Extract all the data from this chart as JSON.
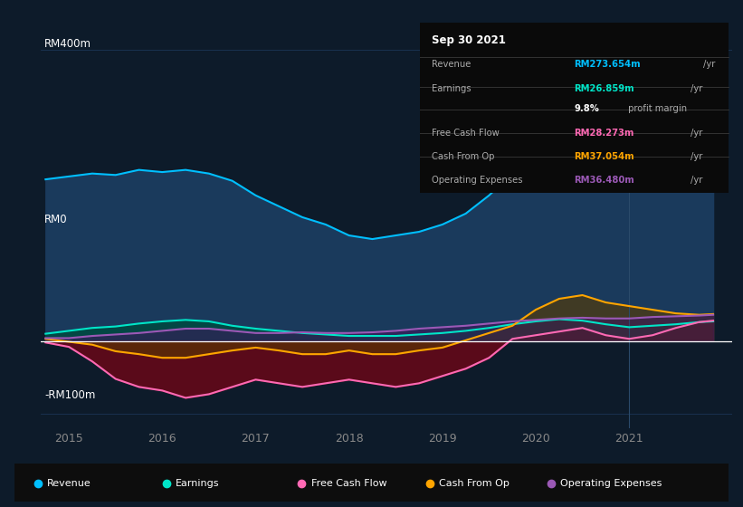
{
  "bg_color": "#0d1b2a",
  "plot_bg_color": "#0d1b2a",
  "grid_color": "#1e3a5f",
  "ylabel_rm400": "RM400m",
  "ylabel_rm0": "RM0",
  "ylabel_rmneg100": "-RM100m",
  "xlim": [
    2014.7,
    2022.1
  ],
  "ylim": [
    -120,
    430
  ],
  "xticks": [
    2015,
    2016,
    2017,
    2018,
    2019,
    2020,
    2021
  ],
  "xtick_labels": [
    "2015",
    "2016",
    "2017",
    "2018",
    "2019",
    "2020",
    "2021"
  ],
  "legend_items": [
    {
      "label": "Revenue",
      "color": "#00bfff"
    },
    {
      "label": "Earnings",
      "color": "#00e5c8"
    },
    {
      "label": "Free Cash Flow",
      "color": "#ff69b4"
    },
    {
      "label": "Cash From Op",
      "color": "#ffa500"
    },
    {
      "label": "Operating Expenses",
      "color": "#9b59b6"
    }
  ],
  "info_box": {
    "date": "Sep 30 2021",
    "rows": [
      {
        "label": "Revenue",
        "value": "RM273.654m",
        "unit": "/yr",
        "color": "#00bfff"
      },
      {
        "label": "Earnings",
        "value": "RM26.859m",
        "unit": "/yr",
        "color": "#00e5c8"
      },
      {
        "label": "",
        "value": "9.8%",
        "unit": " profit margin",
        "color": "#ffffff"
      },
      {
        "label": "Free Cash Flow",
        "value": "RM28.273m",
        "unit": "/yr",
        "color": "#ff69b4"
      },
      {
        "label": "Cash From Op",
        "value": "RM37.054m",
        "unit": "/yr",
        "color": "#ffa500"
      },
      {
        "label": "Operating Expenses",
        "value": "RM36.480m",
        "unit": "/yr",
        "color": "#9b59b6"
      }
    ]
  },
  "revenue": {
    "x": [
      2014.75,
      2015.0,
      2015.25,
      2015.5,
      2015.75,
      2016.0,
      2016.25,
      2016.5,
      2016.75,
      2017.0,
      2017.25,
      2017.5,
      2017.75,
      2018.0,
      2018.25,
      2018.5,
      2018.75,
      2019.0,
      2019.25,
      2019.5,
      2019.75,
      2020.0,
      2020.25,
      2020.5,
      2020.75,
      2021.0,
      2021.25,
      2021.5,
      2021.75,
      2021.9
    ],
    "y": [
      222,
      226,
      230,
      228,
      235,
      232,
      235,
      230,
      220,
      200,
      185,
      170,
      160,
      145,
      140,
      145,
      150,
      160,
      175,
      200,
      230,
      285,
      345,
      385,
      370,
      338,
      308,
      278,
      274,
      274
    ],
    "color": "#00bfff",
    "fill_color": "#1a3a5c"
  },
  "earnings": {
    "x": [
      2014.75,
      2015.0,
      2015.25,
      2015.5,
      2015.75,
      2016.0,
      2016.25,
      2016.5,
      2016.75,
      2017.0,
      2017.25,
      2017.5,
      2017.75,
      2018.0,
      2018.25,
      2018.5,
      2018.75,
      2019.0,
      2019.25,
      2019.5,
      2019.75,
      2020.0,
      2020.25,
      2020.5,
      2020.75,
      2021.0,
      2021.25,
      2021.5,
      2021.75,
      2021.9
    ],
    "y": [
      10,
      14,
      18,
      20,
      24,
      27,
      29,
      27,
      21,
      17,
      14,
      11,
      9,
      7,
      7,
      7,
      9,
      11,
      14,
      18,
      23,
      27,
      30,
      28,
      23,
      19,
      21,
      23,
      26,
      27
    ],
    "color": "#00e5c8",
    "fill_color": "#004a40"
  },
  "free_cash_flow": {
    "x": [
      2014.75,
      2015.0,
      2015.25,
      2015.5,
      2015.75,
      2016.0,
      2016.25,
      2016.5,
      2016.75,
      2017.0,
      2017.25,
      2017.5,
      2017.75,
      2018.0,
      2018.25,
      2018.5,
      2018.75,
      2019.0,
      2019.25,
      2019.5,
      2019.75,
      2020.0,
      2020.25,
      2020.5,
      2020.75,
      2021.0,
      2021.25,
      2021.5,
      2021.75,
      2021.9
    ],
    "y": [
      -2,
      -8,
      -28,
      -52,
      -63,
      -68,
      -78,
      -73,
      -63,
      -53,
      -58,
      -63,
      -58,
      -53,
      -58,
      -63,
      -58,
      -48,
      -38,
      -23,
      3,
      8,
      13,
      18,
      8,
      3,
      8,
      18,
      26,
      28
    ],
    "color": "#ff69b4",
    "fill_color": "#5a0a1a"
  },
  "cash_from_op": {
    "x": [
      2014.75,
      2015.0,
      2015.25,
      2015.5,
      2015.75,
      2016.0,
      2016.25,
      2016.5,
      2016.75,
      2017.0,
      2017.25,
      2017.5,
      2017.75,
      2018.0,
      2018.25,
      2018.5,
      2018.75,
      2019.0,
      2019.25,
      2019.5,
      2019.75,
      2020.0,
      2020.25,
      2020.5,
      2020.75,
      2021.0,
      2021.25,
      2021.5,
      2021.75,
      2021.9
    ],
    "y": [
      3,
      -1,
      -5,
      -14,
      -18,
      -23,
      -23,
      -18,
      -13,
      -9,
      -13,
      -18,
      -18,
      -13,
      -18,
      -18,
      -13,
      -9,
      1,
      11,
      21,
      43,
      58,
      63,
      53,
      48,
      43,
      38,
      36,
      37
    ],
    "color": "#ffa500",
    "fill_color": "#5a3a00"
  },
  "operating_expenses": {
    "x": [
      2014.75,
      2015.0,
      2015.25,
      2015.5,
      2015.75,
      2016.0,
      2016.25,
      2016.5,
      2016.75,
      2017.0,
      2017.25,
      2017.5,
      2017.75,
      2018.0,
      2018.25,
      2018.5,
      2018.75,
      2019.0,
      2019.25,
      2019.5,
      2019.75,
      2020.0,
      2020.25,
      2020.5,
      2020.75,
      2021.0,
      2021.25,
      2021.5,
      2021.75,
      2021.9
    ],
    "y": [
      4,
      4,
      7,
      9,
      11,
      14,
      17,
      17,
      14,
      11,
      11,
      12,
      11,
      11,
      12,
      14,
      17,
      19,
      21,
      24,
      27,
      29,
      31,
      32,
      31,
      31,
      33,
      34,
      35,
      36
    ],
    "color": "#9b59b6",
    "fill_color": "#3a1a5a"
  }
}
